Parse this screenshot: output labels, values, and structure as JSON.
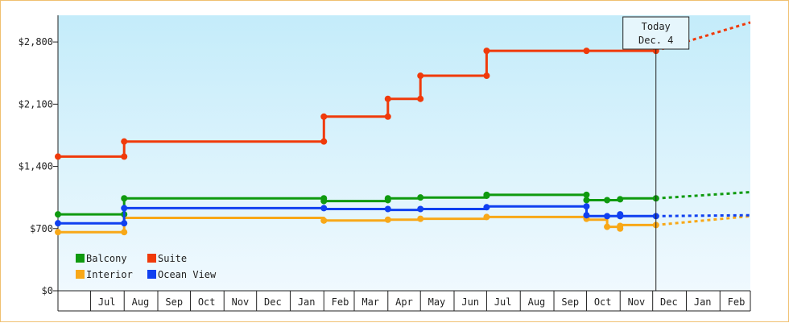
{
  "chart_data": {
    "type": "line",
    "title": "",
    "xlabel": "",
    "ylabel": "",
    "ylim": [
      0,
      3100
    ],
    "y_ticks": [
      0,
      700,
      1400,
      2100,
      2800
    ],
    "y_tick_labels": [
      "$0",
      "$700",
      "$1,400",
      "$2,100",
      "$2,800"
    ],
    "x_ticks": [
      "2013-06-16",
      "2013-07-16",
      "2013-08-16",
      "2013-09-16",
      "2013-10-16",
      "2013-11-16",
      "2013-12-16",
      "2014-01-16",
      "2014-02-16",
      "2014-03-16",
      "2014-04-16",
      "2014-05-16",
      "2014-06-16",
      "2014-07-16",
      "2014-08-16",
      "2014-09-16",
      "2014-10-16",
      "2014-11-16",
      "2014-12-16",
      "2015-01-16",
      "2015-02-16"
    ],
    "x_tick_labels": [
      "",
      "Jul",
      "Aug",
      "Sep",
      "Oct",
      "Nov",
      "Dec",
      "Jan",
      "Feb",
      "Mar",
      "Apr",
      "May",
      "Jun",
      "Jul",
      "Aug",
      "Sep",
      "Oct",
      "Nov",
      "Dec",
      "Jan",
      "Feb"
    ],
    "xlim": [
      "2013-06-01",
      "2015-03-01"
    ],
    "grid": false,
    "legend_position": "bottom-left",
    "today": {
      "label_line1": "Today",
      "label_line2": "Dec. 4",
      "date": "2014-12-04"
    },
    "series": [
      {
        "name": "Balcony",
        "color": "#0f9a0f",
        "points": [
          [
            "2013-06-01",
            860
          ],
          [
            "2013-08-01",
            860
          ],
          [
            "2013-08-01",
            1040
          ],
          [
            "2014-02-01",
            1040
          ],
          [
            "2014-02-01",
            1010
          ],
          [
            "2014-04-01",
            1010
          ],
          [
            "2014-04-01",
            1040
          ],
          [
            "2014-05-01",
            1040
          ],
          [
            "2014-05-01",
            1050
          ],
          [
            "2014-07-01",
            1050
          ],
          [
            "2014-07-01",
            1080
          ],
          [
            "2014-10-01",
            1080
          ],
          [
            "2014-10-01",
            1020
          ],
          [
            "2014-11-01",
            1020
          ],
          [
            "2014-11-01",
            1040
          ],
          [
            "2014-12-04",
            1040
          ]
        ],
        "markers": [
          [
            "2013-06-01",
            860
          ],
          [
            "2013-08-01",
            860
          ],
          [
            "2013-08-01",
            1040
          ],
          [
            "2014-02-01",
            1040
          ],
          [
            "2014-02-01",
            1010
          ],
          [
            "2014-04-01",
            1020
          ],
          [
            "2014-04-01",
            1040
          ],
          [
            "2014-05-01",
            1050
          ],
          [
            "2014-07-01",
            1070
          ],
          [
            "2014-07-01",
            1080
          ],
          [
            "2014-10-01",
            1080
          ],
          [
            "2014-10-01",
            1020
          ],
          [
            "2014-10-20",
            1020
          ],
          [
            "2014-11-01",
            1030
          ],
          [
            "2014-12-04",
            1040
          ]
        ],
        "projection": [
          [
            "2014-12-04",
            1040
          ],
          [
            "2015-03-01",
            1110
          ]
        ]
      },
      {
        "name": "Suite",
        "color": "#f03a0a",
        "points": [
          [
            "2013-06-01",
            1510
          ],
          [
            "2013-08-01",
            1510
          ],
          [
            "2013-08-01",
            1680
          ],
          [
            "2014-02-01",
            1680
          ],
          [
            "2014-02-01",
            1960
          ],
          [
            "2014-04-01",
            1960
          ],
          [
            "2014-04-01",
            2160
          ],
          [
            "2014-05-01",
            2160
          ],
          [
            "2014-05-01",
            2420
          ],
          [
            "2014-07-01",
            2420
          ],
          [
            "2014-07-01",
            2700
          ],
          [
            "2014-12-04",
            2700
          ]
        ],
        "markers": [
          [
            "2013-06-01",
            1510
          ],
          [
            "2013-08-01",
            1510
          ],
          [
            "2013-08-01",
            1680
          ],
          [
            "2014-02-01",
            1680
          ],
          [
            "2014-02-01",
            1960
          ],
          [
            "2014-04-01",
            1960
          ],
          [
            "2014-04-01",
            2160
          ],
          [
            "2014-05-01",
            2160
          ],
          [
            "2014-05-01",
            2420
          ],
          [
            "2014-07-01",
            2420
          ],
          [
            "2014-07-01",
            2700
          ],
          [
            "2014-10-01",
            2700
          ],
          [
            "2014-12-04",
            2700
          ]
        ],
        "projection": [
          [
            "2014-12-04",
            2700
          ],
          [
            "2015-03-01",
            3020
          ]
        ]
      },
      {
        "name": "Interior",
        "color": "#f8a818",
        "points": [
          [
            "2013-06-01",
            660
          ],
          [
            "2013-08-01",
            660
          ],
          [
            "2013-08-01",
            820
          ],
          [
            "2014-02-01",
            820
          ],
          [
            "2014-02-01",
            790
          ],
          [
            "2014-04-01",
            790
          ],
          [
            "2014-04-01",
            800
          ],
          [
            "2014-05-01",
            800
          ],
          [
            "2014-05-01",
            810
          ],
          [
            "2014-07-01",
            810
          ],
          [
            "2014-07-01",
            830
          ],
          [
            "2014-10-01",
            830
          ],
          [
            "2014-10-01",
            800
          ],
          [
            "2014-10-20",
            800
          ],
          [
            "2014-10-20",
            720
          ],
          [
            "2014-11-01",
            720
          ],
          [
            "2014-11-01",
            740
          ],
          [
            "2014-12-04",
            740
          ]
        ],
        "markers": [
          [
            "2013-06-01",
            660
          ],
          [
            "2013-08-01",
            660
          ],
          [
            "2014-02-01",
            790
          ],
          [
            "2014-04-01",
            800
          ],
          [
            "2014-05-01",
            810
          ],
          [
            "2014-07-01",
            830
          ],
          [
            "2014-10-01",
            810
          ],
          [
            "2014-10-20",
            720
          ],
          [
            "2014-11-01",
            730
          ],
          [
            "2014-11-01",
            700
          ],
          [
            "2014-12-04",
            740
          ]
        ],
        "projection": [
          [
            "2014-12-04",
            740
          ],
          [
            "2015-03-01",
            840
          ]
        ]
      },
      {
        "name": "Ocean View",
        "color": "#1040f0",
        "points": [
          [
            "2013-06-01",
            760
          ],
          [
            "2013-08-01",
            760
          ],
          [
            "2013-08-01",
            930
          ],
          [
            "2014-02-01",
            930
          ],
          [
            "2014-02-01",
            920
          ],
          [
            "2014-04-01",
            920
          ],
          [
            "2014-04-01",
            910
          ],
          [
            "2014-05-01",
            910
          ],
          [
            "2014-05-01",
            920
          ],
          [
            "2014-07-01",
            920
          ],
          [
            "2014-07-01",
            950
          ],
          [
            "2014-10-01",
            950
          ],
          [
            "2014-10-01",
            840
          ],
          [
            "2014-12-04",
            840
          ]
        ],
        "markers": [
          [
            "2013-06-01",
            760
          ],
          [
            "2013-08-01",
            760
          ],
          [
            "2013-08-01",
            930
          ],
          [
            "2014-02-01",
            930
          ],
          [
            "2014-04-01",
            920
          ],
          [
            "2014-05-01",
            920
          ],
          [
            "2014-07-01",
            940
          ],
          [
            "2014-10-01",
            950
          ],
          [
            "2014-10-01",
            850
          ],
          [
            "2014-10-20",
            840
          ],
          [
            "2014-11-01",
            840
          ],
          [
            "2014-11-01",
            860
          ],
          [
            "2014-12-04",
            840
          ]
        ],
        "projection": [
          [
            "2014-12-04",
            840
          ],
          [
            "2015-03-01",
            850
          ]
        ]
      }
    ]
  }
}
